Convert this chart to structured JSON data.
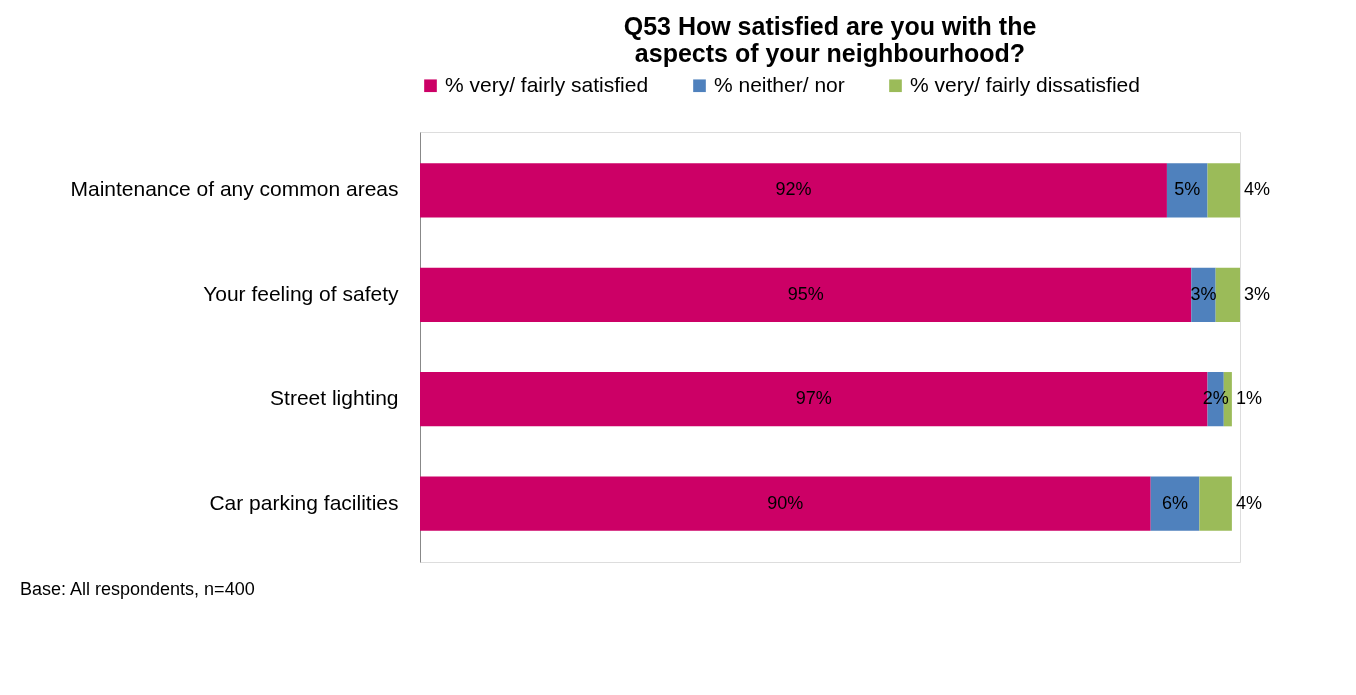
{
  "chart_data": {
    "type": "bar",
    "orientation": "horizontal",
    "stacked": true,
    "title": "Q53 How satisfied are you with the aspects of your neighbourhood?",
    "categories": [
      "Maintenance of any common areas",
      "Your feeling of safety",
      "Street lighting",
      "Car parking facilities"
    ],
    "series": [
      {
        "name": "% very/ fairly satisfied",
        "color": "#cc0066",
        "values": [
          92,
          95,
          97,
          90
        ],
        "value_labels": [
          "92%",
          "95%",
          "97%",
          "90%"
        ]
      },
      {
        "name": "% neither/ nor",
        "color": "#4f81bd",
        "values": [
          5,
          3,
          2,
          6
        ],
        "value_labels": [
          "5%",
          "3%",
          "2%",
          "6%"
        ]
      },
      {
        "name": "% very/ fairly dissatisfied",
        "color": "#9bbb59",
        "values": [
          4,
          3,
          1,
          4
        ],
        "value_labels": [
          "4%",
          "3%",
          "1%",
          "4%"
        ]
      }
    ],
    "legend": "top",
    "annotations": [
      "Base: All respondents, n=400"
    ]
  }
}
